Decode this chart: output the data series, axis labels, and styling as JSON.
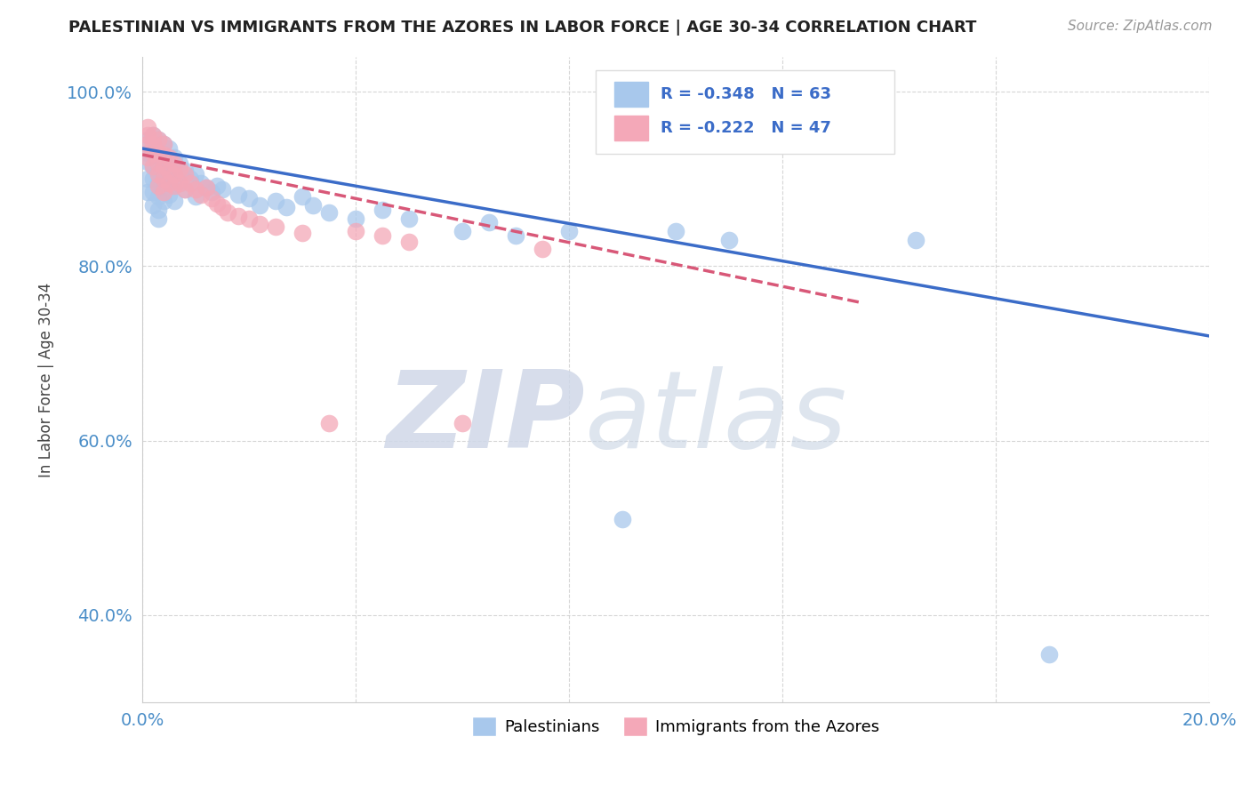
{
  "title": "PALESTINIAN VS IMMIGRANTS FROM THE AZORES IN LABOR FORCE | AGE 30-34 CORRELATION CHART",
  "source": "Source: ZipAtlas.com",
  "ylabel": "In Labor Force | Age 30-34",
  "xlim": [
    0.0,
    0.2
  ],
  "ylim": [
    0.3,
    1.04
  ],
  "blue_color": "#A8C8EC",
  "pink_color": "#F4A8B8",
  "blue_line_color": "#3B6CC8",
  "pink_line_color": "#D85878",
  "watermark_zip": "ZIP",
  "watermark_atlas": "atlas",
  "legend_r_blue": "R = -0.348",
  "legend_n_blue": "N = 63",
  "legend_r_pink": "R = -0.222",
  "legend_n_pink": "N = 47",
  "blue_label": "Palestinians",
  "pink_label": "Immigrants from the Azores",
  "blue_points_x": [
    0.001,
    0.001,
    0.001,
    0.001,
    0.001,
    0.002,
    0.002,
    0.002,
    0.002,
    0.002,
    0.002,
    0.003,
    0.003,
    0.003,
    0.003,
    0.003,
    0.003,
    0.003,
    0.004,
    0.004,
    0.004,
    0.004,
    0.004,
    0.005,
    0.005,
    0.005,
    0.005,
    0.006,
    0.006,
    0.006,
    0.006,
    0.007,
    0.007,
    0.008,
    0.008,
    0.009,
    0.01,
    0.01,
    0.011,
    0.012,
    0.013,
    0.014,
    0.015,
    0.018,
    0.02,
    0.022,
    0.025,
    0.027,
    0.03,
    0.032,
    0.035,
    0.04,
    0.045,
    0.05,
    0.06,
    0.065,
    0.07,
    0.08,
    0.09,
    0.1,
    0.11,
    0.145,
    0.17
  ],
  "blue_points_y": [
    0.945,
    0.93,
    0.92,
    0.9,
    0.885,
    0.95,
    0.93,
    0.915,
    0.9,
    0.885,
    0.87,
    0.945,
    0.925,
    0.91,
    0.895,
    0.88,
    0.865,
    0.855,
    0.94,
    0.92,
    0.905,
    0.89,
    0.875,
    0.935,
    0.915,
    0.9,
    0.882,
    0.925,
    0.908,
    0.893,
    0.875,
    0.918,
    0.895,
    0.91,
    0.888,
    0.9,
    0.905,
    0.88,
    0.895,
    0.89,
    0.885,
    0.892,
    0.888,
    0.882,
    0.878,
    0.87,
    0.875,
    0.868,
    0.88,
    0.87,
    0.862,
    0.855,
    0.865,
    0.855,
    0.84,
    0.85,
    0.835,
    0.84,
    0.51,
    0.84,
    0.83,
    0.83,
    0.355
  ],
  "pink_points_x": [
    0.001,
    0.001,
    0.001,
    0.001,
    0.002,
    0.002,
    0.002,
    0.002,
    0.003,
    0.003,
    0.003,
    0.003,
    0.003,
    0.004,
    0.004,
    0.004,
    0.004,
    0.004,
    0.005,
    0.005,
    0.005,
    0.006,
    0.006,
    0.006,
    0.007,
    0.007,
    0.008,
    0.008,
    0.009,
    0.01,
    0.011,
    0.012,
    0.013,
    0.014,
    0.015,
    0.016,
    0.018,
    0.02,
    0.022,
    0.025,
    0.03,
    0.035,
    0.04,
    0.045,
    0.05,
    0.06,
    0.075
  ],
  "pink_points_y": [
    0.96,
    0.95,
    0.94,
    0.925,
    0.95,
    0.94,
    0.93,
    0.915,
    0.945,
    0.93,
    0.918,
    0.905,
    0.892,
    0.94,
    0.928,
    0.915,
    0.9,
    0.885,
    0.925,
    0.91,
    0.895,
    0.918,
    0.905,
    0.892,
    0.912,
    0.895,
    0.905,
    0.888,
    0.895,
    0.888,
    0.882,
    0.89,
    0.878,
    0.872,
    0.868,
    0.862,
    0.858,
    0.855,
    0.848,
    0.845,
    0.838,
    0.62,
    0.84,
    0.835,
    0.828,
    0.62,
    0.82
  ],
  "blue_trend_x": [
    0.0,
    0.2
  ],
  "blue_trend_y": [
    0.935,
    0.72
  ],
  "pink_trend_x": [
    0.0,
    0.135
  ],
  "pink_trend_y": [
    0.928,
    0.758
  ]
}
